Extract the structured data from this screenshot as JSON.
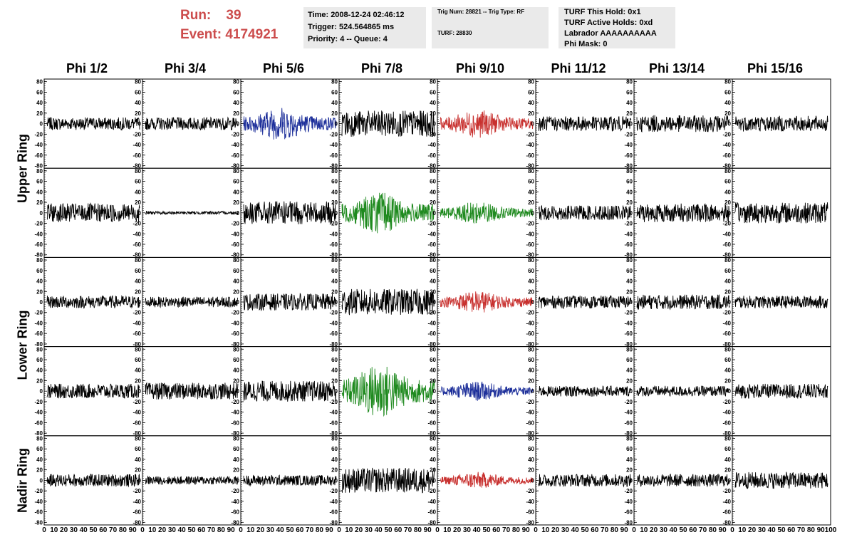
{
  "header": {
    "run_label": "Run:",
    "run_value": "39",
    "event_label": "Event:",
    "event_value": "4174921",
    "time": "Time: 2008-12-24 02:46:12",
    "trigger": "Trigger: 524.564865 ms",
    "priority": "Priority: 4 -- Queue: 4",
    "trig_num": "Trig Num: 28821 -- Trig Type: RF",
    "turf": "TURF: 28830",
    "turf_hold": "TURF This Hold: 0x1",
    "turf_active": "TURF Active Holds: 0xd",
    "labrador": "Labrador AAAAAAAAAA",
    "phi_mask": "Phi Mask: 0"
  },
  "columns": [
    "Phi 1/2",
    "Phi 3/4",
    "Phi 5/6",
    "Phi 7/8",
    "Phi 9/10",
    "Phi 11/12",
    "Phi 13/14",
    "Phi 15/16"
  ],
  "rings": [
    "Upper Ring",
    "Lower Ring",
    "Nadir Ring"
  ],
  "chart_data": {
    "type": "line",
    "panel_grid": {
      "rows": 5,
      "cols": 8
    },
    "ring_rows": {
      "Upper Ring": [
        0,
        1
      ],
      "Lower Ring": [
        2,
        3
      ],
      "Nadir Ring": [
        4
      ]
    },
    "y_ticks": [
      80,
      60,
      40,
      20,
      0,
      -20,
      -40,
      -60,
      -80
    ],
    "ylim": [
      -85,
      85
    ],
    "xlim": [
      0,
      100
    ],
    "x_tick_labels": [
      "0",
      "10",
      "20",
      "30",
      "40",
      "50",
      "60",
      "70",
      "80",
      "90",
      "100"
    ],
    "colors": {
      "default": "#000000",
      "red": "#c8312f",
      "blue": "#1d2f9a",
      "green": "#1f8a1f"
    },
    "panels": [
      [
        "default",
        "default",
        "blue",
        "default",
        "red",
        "default",
        "default",
        "default"
      ],
      [
        "default",
        "default",
        "default",
        "green",
        "green",
        "default",
        "default",
        "default"
      ],
      [
        "default",
        "default",
        "default",
        "default",
        "red",
        "default",
        "default",
        "default"
      ],
      [
        "default",
        "default",
        "default",
        "green",
        "blue",
        "default",
        "default",
        "default"
      ],
      [
        "default",
        "default",
        "default",
        "default",
        "red",
        "default",
        "default",
        "default"
      ]
    ],
    "amplitudes": [
      [
        12,
        12,
        24,
        25,
        20,
        14,
        16,
        15
      ],
      [
        18,
        3,
        22,
        30,
        16,
        14,
        18,
        20
      ],
      [
        12,
        10,
        16,
        25,
        16,
        12,
        14,
        12
      ],
      [
        14,
        16,
        20,
        40,
        14,
        10,
        10,
        14
      ],
      [
        12,
        8,
        10,
        24,
        12,
        12,
        12,
        16
      ]
    ]
  }
}
